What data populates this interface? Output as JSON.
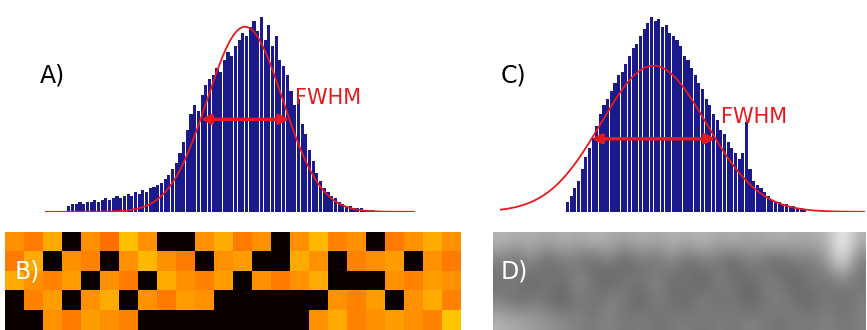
{
  "chart_data": [
    {
      "type": "histogram",
      "title": "A)",
      "tick_labels": false,
      "color": "#1a1a8c",
      "bins": [
        6,
        7,
        8,
        9,
        10,
        11,
        12,
        13,
        14,
        15,
        16,
        17,
        18,
        19,
        20,
        21,
        22,
        23,
        24,
        25,
        26,
        27,
        28,
        29,
        30,
        31,
        32,
        33,
        34,
        35,
        36,
        37,
        38,
        39,
        40,
        41,
        42,
        43,
        44,
        45,
        46,
        47,
        48,
        49,
        50,
        51,
        52,
        53,
        54,
        55,
        56,
        57,
        58,
        59,
        60,
        61,
        62,
        63,
        64,
        65,
        66,
        67,
        68,
        69,
        70,
        71,
        72,
        73,
        74,
        75,
        76,
        77,
        78,
        79,
        80,
        81,
        82,
        83,
        84,
        85,
        86,
        87,
        88,
        89
      ],
      "counts": [
        3,
        4,
        4,
        5,
        4,
        5,
        5,
        6,
        5,
        6,
        7,
        6,
        7,
        8,
        7,
        8,
        9,
        8,
        10,
        9,
        11,
        10,
        12,
        13,
        14,
        15,
        17,
        19,
        22,
        25,
        30,
        36,
        42,
        50,
        55,
        52,
        60,
        65,
        68,
        70,
        74,
        72,
        78,
        82,
        80,
        85,
        88,
        92,
        90,
        95,
        98,
        93,
        100,
        88,
        96,
        85,
        90,
        78,
        75,
        70,
        62,
        55,
        58,
        45,
        40,
        32,
        26,
        20,
        16,
        12,
        10,
        8,
        7,
        5,
        4,
        3,
        3,
        2,
        2,
        2,
        1,
        1,
        1
      ],
      "xlim": [
        0,
        100
      ],
      "ylim": [
        0,
        105
      ],
      "fit": {
        "mean": 54,
        "fwhm": 24,
        "peak": 95,
        "color": "#e8191c"
      },
      "annotation": "FWHM"
    },
    {
      "type": "heatmap",
      "title": "B)",
      "tick_labels": false,
      "cell_range": [
        0,
        1
      ],
      "cells": [
        [
          0.58,
          0.55,
          0.62,
          0.0,
          0.58,
          0.53,
          0.65,
          0.58,
          0.0,
          0.0,
          0.58,
          0.62,
          0.55,
          0.58,
          0.0,
          0.58,
          0.64,
          0.56,
          0.58,
          0.0,
          0.55,
          0.58,
          0.62,
          0.58
        ],
        [
          0.55,
          0.62,
          0.0,
          0.58,
          0.56,
          0.0,
          0.58,
          0.64,
          0.58,
          0.55,
          0.0,
          0.58,
          0.6,
          0.0,
          0.0,
          0.62,
          0.58,
          0.0,
          0.56,
          0.58,
          0.6,
          0.0,
          0.58,
          0.55
        ],
        [
          0.62,
          0.58,
          0.56,
          0.6,
          0.0,
          0.58,
          0.55,
          0.0,
          0.62,
          0.58,
          0.56,
          0.6,
          0.0,
          0.58,
          0.55,
          0.58,
          0.62,
          0.0,
          0.0,
          0.0,
          0.58,
          0.56,
          0.6,
          0.58
        ],
        [
          0.0,
          0.56,
          0.6,
          0.0,
          0.58,
          0.62,
          0.0,
          0.58,
          0.55,
          0.6,
          0.58,
          0.0,
          0.0,
          0.0,
          0.0,
          0.0,
          0.0,
          0.58,
          0.56,
          0.6,
          0.0,
          0.58,
          0.62,
          0.56
        ],
        [
          0.0,
          0.0,
          0.58,
          0.55,
          0.6,
          0.58,
          0.56,
          0.0,
          0.0,
          0.0,
          0.0,
          0.0,
          0.0,
          0.0,
          0.0,
          0.0,
          0.58,
          0.62,
          0.56,
          0.58,
          0.6,
          0.58,
          0.56,
          0.66
        ]
      ]
    },
    {
      "type": "histogram",
      "title": "C)",
      "tick_labels": false,
      "color": "#1a1a8c",
      "bins": [
        18,
        19,
        20,
        21,
        22,
        23,
        24,
        25,
        26,
        27,
        28,
        29,
        30,
        31,
        32,
        33,
        34,
        35,
        36,
        37,
        38,
        39,
        40,
        41,
        42,
        43,
        44,
        45,
        46,
        47,
        48,
        49,
        50,
        51,
        52,
        53,
        54,
        55,
        56,
        57,
        58,
        59,
        60,
        61,
        62,
        63,
        64,
        65,
        66,
        67,
        68,
        69,
        70,
        71,
        72,
        73,
        74,
        75,
        76,
        77,
        78,
        79,
        80,
        81,
        82,
        83,
        84
      ],
      "counts": [
        5,
        8,
        12,
        16,
        22,
        28,
        33,
        38,
        44,
        50,
        55,
        58,
        62,
        66,
        70,
        72,
        76,
        80,
        84,
        86,
        90,
        94,
        97,
        100,
        98,
        99,
        95,
        96,
        92,
        90,
        88,
        85,
        80,
        78,
        74,
        70,
        66,
        63,
        58,
        55,
        50,
        47,
        42,
        40,
        36,
        33,
        30,
        27,
        30,
        46,
        22,
        16,
        14,
        12,
        10,
        8,
        6,
        5,
        5,
        4,
        4,
        3,
        3,
        2,
        2,
        1
      ],
      "xlim": [
        0,
        100
      ],
      "ylim": [
        0,
        105
      ],
      "fit": {
        "mean": 42,
        "fwhm": 34,
        "peak": 75,
        "color": "#e8191c"
      },
      "annotation": "FWHM"
    },
    {
      "type": "heatmap",
      "title": "D)",
      "tick_labels": false,
      "cell_range": [
        0,
        1
      ],
      "cells": [
        [
          0.72,
          0.68,
          0.7,
          0.65,
          0.7,
          0.66,
          0.72,
          0.68,
          0.64,
          0.7,
          0.66,
          0.7,
          0.68,
          0.72,
          0.66,
          0.7,
          0.64,
          0.68,
          0.7,
          0.66,
          0.68,
          0.7,
          0.97,
          0.7
        ],
        [
          0.5,
          0.42,
          0.55,
          0.38,
          0.5,
          0.45,
          0.4,
          0.52,
          0.36,
          0.48,
          0.42,
          0.55,
          0.4,
          0.5,
          0.46,
          0.38,
          0.52,
          0.44,
          0.4,
          0.5,
          0.46,
          0.6,
          0.9,
          0.48
        ],
        [
          0.44,
          0.52,
          0.38,
          0.5,
          0.42,
          0.56,
          0.46,
          0.36,
          0.5,
          0.44,
          0.55,
          0.4,
          0.48,
          0.36,
          0.52,
          0.45,
          0.4,
          0.5,
          0.46,
          0.38,
          0.5,
          0.44,
          0.52,
          0.46
        ],
        [
          0.5,
          0.4,
          0.48,
          0.44,
          0.36,
          0.5,
          0.42,
          0.54,
          0.46,
          0.38,
          0.5,
          0.44,
          0.4,
          0.52,
          0.42,
          0.48,
          0.38,
          0.46,
          0.52,
          0.44,
          0.4,
          0.48,
          0.42,
          0.5
        ],
        [
          0.7,
          0.66,
          0.62,
          0.58,
          0.55,
          0.5,
          0.48,
          0.52,
          0.46,
          0.5,
          0.44,
          0.48,
          0.5,
          0.45,
          0.5,
          0.46,
          0.52,
          0.48,
          0.44,
          0.5,
          0.47,
          0.52,
          0.46,
          0.5
        ]
      ]
    }
  ]
}
